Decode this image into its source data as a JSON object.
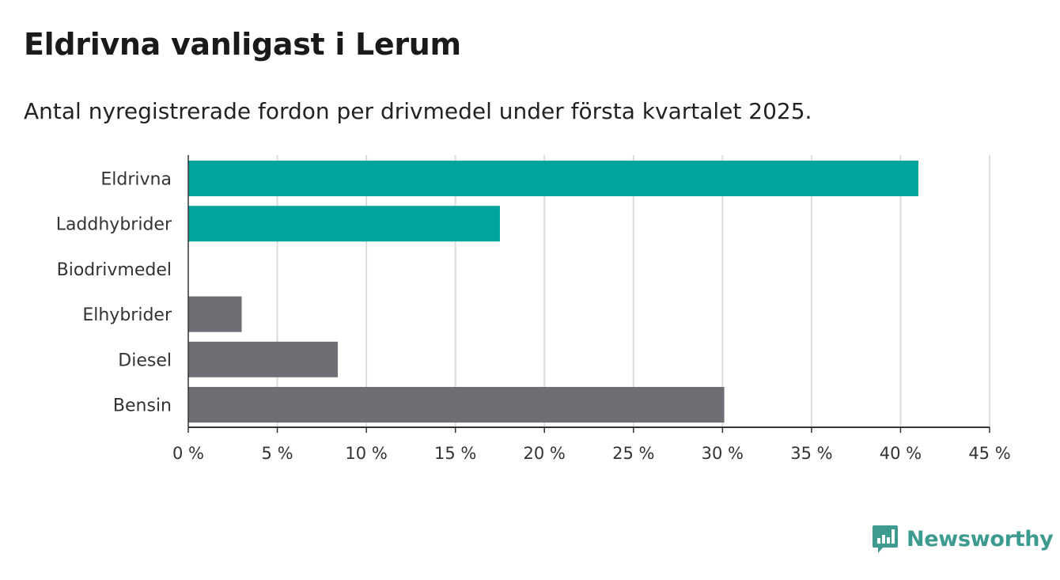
{
  "header": {
    "title": "Eldrivna vanligast i Lerum",
    "subtitle": "Antal nyregistrerade fordon per drivmedel under första kvartalet 2025."
  },
  "brand": {
    "name": "Newsworthy",
    "icon": "newsworthy-logo-icon",
    "color": "#3d9a8f"
  },
  "chart_data": {
    "type": "bar",
    "orientation": "horizontal",
    "categories": [
      "Eldrivna",
      "Laddhybrider",
      "Biodrivmedel",
      "Elhybrider",
      "Diesel",
      "Bensin"
    ],
    "values": [
      41.0,
      17.5,
      0,
      3.0,
      8.4,
      30.1
    ],
    "colors": [
      "#00a49a",
      "#00a49a",
      "#00a49a",
      "#6e6e75",
      "#6e6e75",
      "#6e6e75"
    ],
    "xlim": [
      0,
      45
    ],
    "xticks": [
      0,
      5,
      10,
      15,
      20,
      25,
      30,
      35,
      40,
      45
    ],
    "tick_labels": [
      "0 %",
      "5 %",
      "10 %",
      "15 %",
      "20 %",
      "25 %",
      "30 %",
      "35 %",
      "40 %",
      "45 %"
    ],
    "grid": true,
    "legend": "none"
  }
}
